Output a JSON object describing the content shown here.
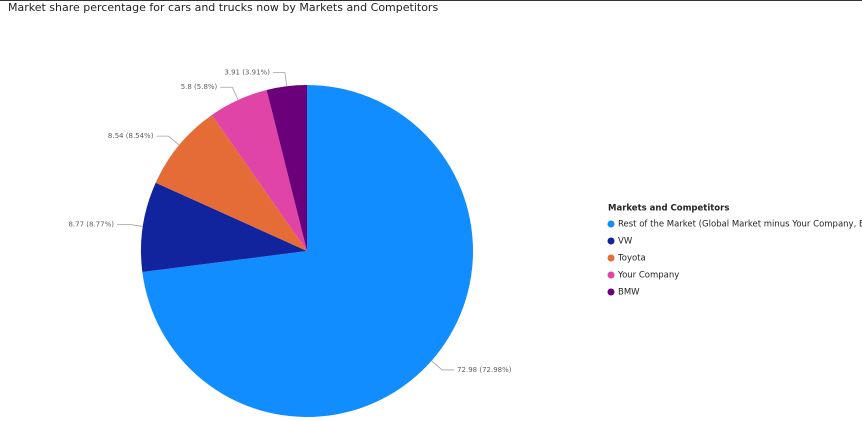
{
  "chart_data": {
    "type": "pie",
    "title": "Market share percentage for cars and trucks now by Markets and Competitors",
    "legend_title": "Markets and Competitors",
    "categories": [
      "Rest of the Market (Global Market minus Your Company, B...",
      "VW",
      "Toyota",
      "Your Company",
      "BMW"
    ],
    "values": [
      72.98,
      8.77,
      8.54,
      5.8,
      3.91
    ],
    "value_labels": [
      "72.98 (72.98%)",
      "8.77 (8.77%)",
      "8.54 (8.54%)",
      "5.8 (5.8%)",
      "3.91 (3.91%)"
    ],
    "colors": [
      "#118DFF",
      "#12239E",
      "#E66C37",
      "#E044A7",
      "#6B007B"
    ],
    "legend_position": "right"
  }
}
